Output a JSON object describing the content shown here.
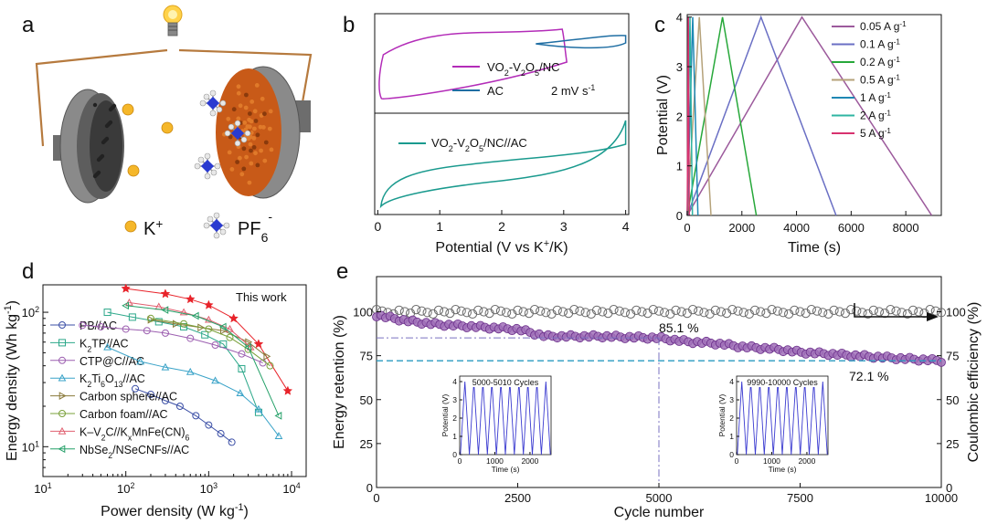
{
  "panel_labels": [
    "a",
    "b",
    "c",
    "d",
    "e"
  ],
  "colors": {
    "vo2": "#b32cb8",
    "ac": "#1f6ea3",
    "full": "#1a9a8e",
    "ret": "#6a2d8a",
    "ret_fill": "#a070b8",
    "this_work": "#e8232a",
    "axis": "#111111",
    "dash_h": "#2a9bc0"
  },
  "schematic": {
    "k_label": "K",
    "k_sup": "+",
    "pf_label": "PF",
    "pf_sub": "6",
    "pf_sup": "-",
    "icons": [
      "light-bulb-icon",
      "anode-disc-icon",
      "cathode-disc-icon",
      "potassium-ion-icon",
      "pf6-anion-icon"
    ]
  },
  "chart_data": [
    {
      "panel": "b",
      "type": "line",
      "xlabel_parts": [
        "Potential (V vs K",
        "+",
        "/K)"
      ],
      "xticks": [
        0,
        1,
        2,
        3,
        4
      ],
      "xlim": [
        -0.05,
        4.05
      ],
      "legend_top": [
        {
          "parts": [
            "VO",
            "2",
            "-V",
            "2",
            "O",
            "5",
            "/NC"
          ],
          "color": "#b32cb8"
        },
        {
          "parts": [
            "AC"
          ],
          "color": "#1f6ea3"
        }
      ],
      "scan_rate": "2 mV s",
      "scan_rate_sup": "-1",
      "legend_bottom": {
        "parts": [
          "VO",
          "2",
          "-V",
          "2",
          "O",
          "5",
          "/NC//AC"
        ],
        "color": "#1a9a8e"
      }
    },
    {
      "panel": "c",
      "type": "line",
      "xlabel": "Time (s)",
      "ylabel": "Potential (V)",
      "xlim": [
        0,
        9300
      ],
      "ylim": [
        0,
        4.05
      ],
      "xticks": [
        0,
        2000,
        4000,
        6000,
        8000
      ],
      "yticks": [
        0,
        1,
        2,
        3,
        4
      ],
      "series": [
        {
          "name": "0.05 A g",
          "sup": "-1",
          "color": "#9c5a9c",
          "x": [
            0,
            4200,
            8950
          ],
          "y": [
            0,
            4,
            0
          ]
        },
        {
          "name": "0.1 A g",
          "sup": "-1",
          "color": "#6a6fc4",
          "x": [
            0,
            2700,
            5450
          ],
          "y": [
            0,
            4,
            0
          ]
        },
        {
          "name": "0.2 A g",
          "sup": "-1",
          "color": "#27a83a",
          "x": [
            0,
            1290,
            2530
          ],
          "y": [
            0,
            4,
            0
          ]
        },
        {
          "name": "0.5 A g",
          "sup": "-1",
          "color": "#b5a27a",
          "x": [
            0,
            440,
            870
          ],
          "y": [
            0,
            4,
            0
          ]
        },
        {
          "name": "1 A g",
          "sup": "-1",
          "color": "#1e88b4",
          "x": [
            0,
            200,
            390
          ],
          "y": [
            0,
            4,
            0
          ]
        },
        {
          "name": "2 A g",
          "sup": "-1",
          "color": "#2fb5a2",
          "x": [
            0,
            100,
            190
          ],
          "y": [
            0,
            4,
            0
          ]
        },
        {
          "name": "5 A g",
          "sup": "-1",
          "color": "#d8326f",
          "x": [
            0,
            40,
            75
          ],
          "y": [
            0,
            4,
            0
          ]
        }
      ]
    },
    {
      "panel": "d",
      "type": "scatter",
      "scale": "log-log",
      "xlabel": "Power density (W kg",
      "xlabel_sup": "-1",
      "xlabel_end": ")",
      "ylabel": "Energy density (Wh kg",
      "ylabel_sup": "-1",
      "ylabel_end": ")",
      "xlim": [
        10,
        15000
      ],
      "ylim": [
        6,
        160
      ],
      "xticks": [
        {
          "v": 10,
          "base": "10",
          "exp": "1"
        },
        {
          "v": 100,
          "base": "10",
          "exp": "2"
        },
        {
          "v": 1000,
          "base": "10",
          "exp": "3"
        },
        {
          "v": 10000,
          "base": "10",
          "exp": "4"
        }
      ],
      "yticks": [
        {
          "v": 10,
          "base": "10",
          "exp": "1"
        },
        {
          "v": 100,
          "base": "10",
          "exp": "2"
        }
      ],
      "annotation": "This work",
      "series": [
        {
          "name": "This work",
          "color": "#e8232a",
          "marker": "star",
          "x": [
            100,
            300,
            600,
            1000,
            2000,
            4000,
            9000
          ],
          "y": [
            150,
            137,
            125,
            113,
            90,
            58,
            26
          ]
        },
        {
          "name": "PB//AC",
          "parts": [
            "PB//AC"
          ],
          "color": "#3b4fa6",
          "marker": "circle",
          "x": [
            130,
            200,
            300,
            450,
            700,
            1000,
            1400,
            1900
          ],
          "y": [
            27,
            24.5,
            22,
            20,
            17,
            14.5,
            12.5,
            10.8
          ]
        },
        {
          "name": "K2TP//AC",
          "parts": [
            "K",
            "2",
            "TP//AC"
          ],
          "color": "#2ca88a",
          "marker": "square",
          "x": [
            60,
            120,
            250,
            500,
            900,
            1500,
            2500,
            4000
          ],
          "y": [
            100,
            92,
            85,
            78,
            68,
            58,
            38,
            18
          ]
        },
        {
          "name": "CTP@C//AC",
          "parts": [
            "CTP@C//AC"
          ],
          "color": "#9c5fb0",
          "marker": "circle",
          "x": [
            30,
            50,
            100,
            180,
            300,
            600,
            1200,
            2500,
            4500
          ],
          "y": [
            80,
            78,
            75,
            73,
            70,
            64,
            57,
            49,
            42
          ]
        },
        {
          "name": "K2Ti6O13//AC",
          "parts": [
            "K",
            "2",
            "Ti",
            "6",
            "O",
            "13",
            "//AC"
          ],
          "color": "#3aa3c8",
          "marker": "triangle",
          "x": [
            60,
            150,
            300,
            600,
            1200,
            2400,
            4000,
            7000
          ],
          "y": [
            55,
            43,
            39,
            36,
            31,
            25,
            19,
            12
          ]
        },
        {
          "name": "Carbon sphere//AC",
          "parts": [
            "Carbon sphere//AC"
          ],
          "color": "#8a7a3a",
          "marker": "triangle-right",
          "x": [
            200,
            400,
            800,
            1500,
            3000,
            5000
          ],
          "y": [
            88,
            82,
            77,
            73,
            60,
            47
          ]
        },
        {
          "name": "Carbon foam//AC",
          "parts": [
            "Carbon foam//AC"
          ],
          "color": "#7aa03a",
          "marker": "circle",
          "x": [
            200,
            500,
            1000,
            1800,
            3000,
            5500
          ],
          "y": [
            90,
            82,
            75,
            65,
            53,
            40
          ]
        },
        {
          "name": "K-V2C//KxMnFe(CN)6",
          "parts": [
            "K–V",
            "2",
            "C//K",
            "x",
            "MnFe(CN)",
            "6"
          ],
          "color": "#e06070",
          "marker": "triangle",
          "x": [
            110,
            250,
            500,
            1000,
            1800,
            3200
          ],
          "y": [
            118,
            110,
            100,
            88,
            75,
            55
          ]
        },
        {
          "name": "NbSe2/NSeCNFs//AC",
          "parts": [
            "NbSe",
            "2",
            "/NSeCNFs//AC"
          ],
          "color": "#24a068",
          "marker": "triangle-left",
          "x": [
            100,
            300,
            700,
            1500,
            3000,
            7000
          ],
          "y": [
            112,
            104,
            94,
            78,
            55,
            17
          ]
        }
      ]
    },
    {
      "panel": "e",
      "type": "scatter",
      "xlabel": "Cycle number",
      "ylabel": "Energy retention (%)",
      "ylabel_right": "Coulombic efficiency (%)",
      "xlim": [
        0,
        10000
      ],
      "ylim": [
        0,
        120
      ],
      "xticks": [
        0,
        2500,
        5000,
        7500,
        10000
      ],
      "yticks": [
        0,
        25,
        50,
        75,
        100
      ],
      "yticks_right": [
        0,
        25,
        50,
        75,
        100
      ],
      "retention": {
        "cycles": [
          0,
          500,
          1000,
          1500,
          2000,
          2500,
          3000,
          3500,
          4000,
          4500,
          5000,
          5500,
          6000,
          6500,
          7000,
          7500,
          8000,
          8500,
          9000,
          9500,
          10000
        ],
        "values": [
          98,
          95,
          93,
          92,
          91,
          90,
          86,
          86,
          86,
          85.5,
          85.1,
          83,
          82,
          80,
          79,
          77,
          76,
          75,
          74,
          73,
          72.1
        ]
      },
      "coulombic_efficiency": 100,
      "annotations": [
        {
          "text": "85.1 %",
          "x": 5000,
          "y": 85.1,
          "color": "#9080d0"
        },
        {
          "text": "72.1 %",
          "x": 10000,
          "y": 72.1,
          "color": "#2a9bc0"
        }
      ],
      "insets": [
        {
          "title": "5000-5010 Cycles",
          "xlabel": "Time (s)",
          "ylabel": "Potential (V)",
          "xticks": [
            0,
            1000,
            2000
          ],
          "yticks": [
            0,
            1,
            2,
            3,
            4
          ],
          "xlim": [
            0,
            2600
          ],
          "ylim": [
            0,
            4.3
          ],
          "cycles": 10
        },
        {
          "title": "9990-10000 Cycles",
          "xlabel": "Time (s)",
          "ylabel": "Potential (V)",
          "xticks": [
            0,
            1000,
            2000
          ],
          "yticks": [
            0,
            1,
            2,
            3,
            4
          ],
          "xlim": [
            0,
            2600
          ],
          "ylim": [
            0,
            4.3
          ],
          "cycles": 10
        }
      ]
    }
  ]
}
